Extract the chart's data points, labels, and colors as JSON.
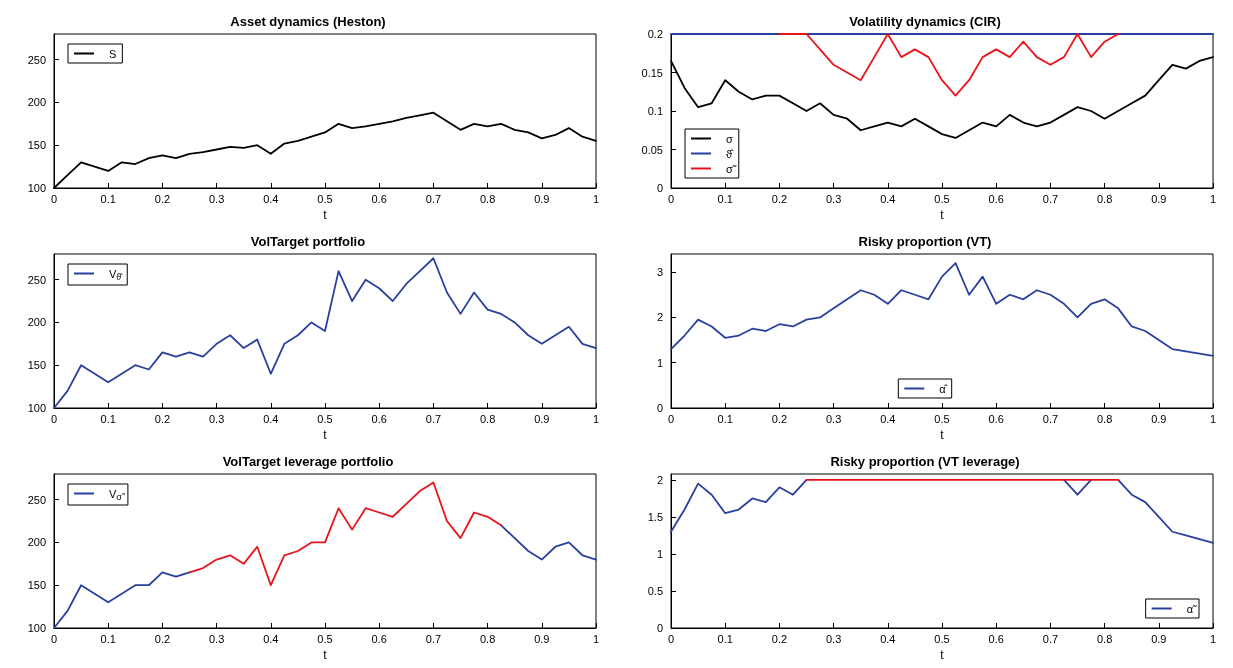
{
  "chart_data": [
    {
      "type": "line",
      "title": "Asset dynamics (Heston)",
      "xlabel": "t",
      "xlim": [
        0,
        1
      ],
      "xticks": [
        0,
        0.1,
        0.2,
        0.3,
        0.4,
        0.5,
        0.6,
        0.7,
        0.8,
        0.9,
        1
      ],
      "ylim": [
        100,
        280
      ],
      "yticks": [
        100,
        150,
        200,
        250
      ],
      "legend": "top left",
      "grid": false,
      "marker": "none",
      "x": [
        0,
        0.025,
        0.05,
        0.075,
        0.1,
        0.125,
        0.15,
        0.175,
        0.2,
        0.225,
        0.25,
        0.275,
        0.3,
        0.325,
        0.35,
        0.375,
        0.4,
        0.425,
        0.45,
        0.475,
        0.5,
        0.525,
        0.55,
        0.575,
        0.6,
        0.625,
        0.65,
        0.675,
        0.7,
        0.725,
        0.75,
        0.775,
        0.8,
        0.825,
        0.85,
        0.875,
        0.9,
        0.925,
        0.95,
        0.975,
        1
      ],
      "series": [
        {
          "name": "S",
          "color": "#000000",
          "values": [
            100,
            115,
            130,
            125,
            120,
            130,
            128,
            135,
            138,
            135,
            140,
            142,
            145,
            148,
            147,
            150,
            140,
            152,
            155,
            160,
            165,
            175,
            170,
            172,
            175,
            178,
            182,
            185,
            188,
            178,
            168,
            175,
            172,
            175,
            168,
            165,
            158,
            162,
            170,
            160,
            155
          ]
        }
      ]
    },
    {
      "type": "line",
      "title": "Volatility dynamics (CIR)",
      "xlabel": "t",
      "xlim": [
        0,
        1
      ],
      "xticks": [
        0,
        0.1,
        0.2,
        0.3,
        0.4,
        0.5,
        0.6,
        0.7,
        0.8,
        0.9,
        1
      ],
      "ylim": [
        0,
        0.2
      ],
      "yticks": [
        0,
        0.05,
        0.1,
        0.15,
        0.2
      ],
      "legend": "bottom left",
      "grid": false,
      "marker": "none",
      "x": [
        0,
        0.025,
        0.05,
        0.075,
        0.1,
        0.125,
        0.15,
        0.175,
        0.2,
        0.225,
        0.25,
        0.275,
        0.3,
        0.325,
        0.35,
        0.375,
        0.4,
        0.425,
        0.45,
        0.475,
        0.5,
        0.525,
        0.55,
        0.575,
        0.6,
        0.625,
        0.65,
        0.675,
        0.7,
        0.725,
        0.75,
        0.775,
        0.8,
        0.825,
        0.85,
        0.875,
        0.9,
        0.925,
        0.95,
        0.975,
        1
      ],
      "series": [
        {
          "name": "σ",
          "color": "#000000",
          "values": [
            0.165,
            0.13,
            0.105,
            0.11,
            0.14,
            0.125,
            0.115,
            0.12,
            0.12,
            0.11,
            0.1,
            0.11,
            0.095,
            0.09,
            0.075,
            0.08,
            0.085,
            0.08,
            0.09,
            0.08,
            0.07,
            0.065,
            0.075,
            0.085,
            0.08,
            0.095,
            0.085,
            0.08,
            0.085,
            0.095,
            0.105,
            0.1,
            0.09,
            0.1,
            0.11,
            0.12,
            0.14,
            0.16,
            0.155,
            0.165,
            0.17
          ]
        },
        {
          "name": "ϑ̂",
          "color": "#2b3f9e",
          "values": [
            0.2,
            0.2,
            0.2,
            0.2,
            0.2,
            0.2,
            0.2,
            0.2,
            0.2,
            0.2,
            0.2,
            0.2,
            0.2,
            0.2,
            0.2,
            0.2,
            0.2,
            0.2,
            0.2,
            0.2,
            0.2,
            0.2,
            0.2,
            0.2,
            0.2,
            0.2,
            0.2,
            0.2,
            0.2,
            0.2,
            0.2,
            0.2,
            0.2,
            0.2,
            0.2,
            0.2,
            0.2,
            0.2,
            0.2,
            0.2,
            0.2
          ]
        },
        {
          "name": "σ̃",
          "color": "#e8141c",
          "x": [
            0.2,
            0.225,
            0.25,
            0.275,
            0.3,
            0.325,
            0.35,
            0.375,
            0.4,
            0.425,
            0.45,
            0.475,
            0.5,
            0.525,
            0.55,
            0.575,
            0.6,
            0.625,
            0.65,
            0.675,
            0.7,
            0.725,
            0.75,
            0.775,
            0.8,
            0.825
          ],
          "values": [
            0.2,
            0.2,
            0.2,
            0.18,
            0.16,
            0.15,
            0.14,
            0.17,
            0.2,
            0.17,
            0.18,
            0.17,
            0.14,
            0.12,
            0.14,
            0.17,
            0.18,
            0.17,
            0.19,
            0.17,
            0.16,
            0.17,
            0.2,
            0.17,
            0.19,
            0.2
          ]
        }
      ]
    },
    {
      "type": "line",
      "title": "VolTarget portfolio",
      "xlabel": "t",
      "xlim": [
        0,
        1
      ],
      "xticks": [
        0,
        0.1,
        0.2,
        0.3,
        0.4,
        0.5,
        0.6,
        0.7,
        0.8,
        0.9,
        1
      ],
      "ylim": [
        100,
        280
      ],
      "yticks": [
        100,
        150,
        200,
        250
      ],
      "legend": "top left",
      "grid": false,
      "marker": "none",
      "x": [
        0,
        0.025,
        0.05,
        0.075,
        0.1,
        0.125,
        0.15,
        0.175,
        0.2,
        0.225,
        0.25,
        0.275,
        0.3,
        0.325,
        0.35,
        0.375,
        0.4,
        0.425,
        0.45,
        0.475,
        0.5,
        0.525,
        0.55,
        0.575,
        0.6,
        0.625,
        0.65,
        0.675,
        0.7,
        0.725,
        0.75,
        0.775,
        0.8,
        0.825,
        0.85,
        0.875,
        0.9,
        0.925,
        0.95,
        0.975,
        1
      ],
      "series": [
        {
          "name": "V$_{ϑ̂}$",
          "color": "#2b3f9e",
          "values": [
            100,
            120,
            150,
            140,
            130,
            140,
            150,
            145,
            165,
            160,
            165,
            160,
            175,
            185,
            170,
            180,
            140,
            175,
            185,
            200,
            190,
            260,
            225,
            250,
            240,
            225,
            245,
            260,
            275,
            235,
            210,
            235,
            215,
            210,
            200,
            185,
            175,
            185,
            195,
            175,
            170
          ]
        }
      ]
    },
    {
      "type": "line",
      "title": "Risky proportion (VT)",
      "xlabel": "t",
      "xlim": [
        0,
        1
      ],
      "xticks": [
        0,
        0.1,
        0.2,
        0.3,
        0.4,
        0.5,
        0.6,
        0.7,
        0.8,
        0.9,
        1
      ],
      "ylim": [
        0,
        3.4
      ],
      "yticks": [
        0,
        1,
        2,
        3
      ],
      "legend": "bottom",
      "grid": false,
      "marker": "none",
      "x": [
        0,
        0.025,
        0.05,
        0.075,
        0.1,
        0.125,
        0.15,
        0.175,
        0.2,
        0.225,
        0.25,
        0.275,
        0.3,
        0.325,
        0.35,
        0.375,
        0.4,
        0.425,
        0.45,
        0.475,
        0.5,
        0.525,
        0.55,
        0.575,
        0.6,
        0.625,
        0.65,
        0.675,
        0.7,
        0.725,
        0.75,
        0.775,
        0.8,
        0.825,
        0.85,
        0.875,
        0.9,
        0.925,
        0.95,
        0.975,
        1
      ],
      "series": [
        {
          "name": "α̂",
          "color": "#2b3f9e",
          "values": [
            1.3,
            1.6,
            1.95,
            1.8,
            1.55,
            1.6,
            1.75,
            1.7,
            1.85,
            1.8,
            1.95,
            2,
            2.2,
            2.4,
            2.6,
            2.5,
            2.3,
            2.6,
            2.5,
            2.4,
            2.9,
            3.2,
            2.5,
            2.9,
            2.3,
            2.5,
            2.4,
            2.6,
            2.5,
            2.3,
            2,
            2.3,
            2.4,
            2.2,
            1.8,
            1.7,
            1.5,
            1.3,
            1.25,
            1.2,
            1.15
          ]
        }
      ]
    },
    {
      "type": "line",
      "title": "VolTarget leverage portfolio",
      "xlabel": "t",
      "xlim": [
        0,
        1
      ],
      "xticks": [
        0,
        0.1,
        0.2,
        0.3,
        0.4,
        0.5,
        0.6,
        0.7,
        0.8,
        0.9,
        1
      ],
      "ylim": [
        100,
        280
      ],
      "yticks": [
        100,
        150,
        200,
        250
      ],
      "legend": "top left",
      "grid": false,
      "marker": "none",
      "x": [
        0,
        0.025,
        0.05,
        0.075,
        0.1,
        0.125,
        0.15,
        0.175,
        0.2,
        0.225,
        0.25,
        0.275,
        0.3,
        0.325,
        0.35,
        0.375,
        0.4,
        0.425,
        0.45,
        0.475,
        0.5,
        0.525,
        0.55,
        0.575,
        0.6,
        0.625,
        0.65,
        0.675,
        0.7,
        0.725,
        0.75,
        0.775,
        0.8,
        0.825,
        0.85,
        0.875,
        0.9,
        0.925,
        0.95,
        0.975,
        1
      ],
      "series": [
        {
          "name": "V$_{σ̃}$",
          "color": "#2b3f9e",
          "values": [
            100,
            120,
            150,
            140,
            130,
            140,
            150,
            150,
            165,
            160,
            165,
            null,
            null,
            null,
            null,
            null,
            null,
            null,
            null,
            null,
            null,
            null,
            null,
            null,
            null,
            null,
            null,
            null,
            null,
            null,
            null,
            null,
            null,
            220,
            205,
            190,
            180,
            195,
            200,
            185,
            180
          ]
        },
        {
          "color": "#e8141c",
          "x": [
            0.25,
            0.275,
            0.3,
            0.325,
            0.35,
            0.375,
            0.4,
            0.425,
            0.45,
            0.475,
            0.5,
            0.525,
            0.55,
            0.575,
            0.6,
            0.625,
            0.65,
            0.675,
            0.7,
            0.725,
            0.75,
            0.775,
            0.8,
            0.825
          ],
          "values": [
            165,
            170,
            180,
            185,
            175,
            195,
            150,
            185,
            190,
            200,
            200,
            240,
            215,
            240,
            235,
            230,
            245,
            260,
            270,
            225,
            205,
            235,
            230,
            220
          ]
        }
      ]
    },
    {
      "type": "line",
      "title": "Risky proportion (VT leverage)",
      "xlabel": "t",
      "xlim": [
        0,
        1
      ],
      "xticks": [
        0,
        0.1,
        0.2,
        0.3,
        0.4,
        0.5,
        0.6,
        0.7,
        0.8,
        0.9,
        1
      ],
      "ylim": [
        0,
        2.08
      ],
      "yticks": [
        0,
        0.5,
        1,
        1.5,
        2
      ],
      "legend": "bottom right",
      "grid": false,
      "marker": "none",
      "x": [
        0,
        0.025,
        0.05,
        0.075,
        0.1,
        0.125,
        0.15,
        0.175,
        0.2,
        0.225,
        0.25,
        0.275,
        0.3,
        0.325,
        0.35,
        0.375,
        0.4,
        0.425,
        0.45,
        0.475,
        0.5,
        0.525,
        0.55,
        0.575,
        0.6,
        0.625,
        0.65,
        0.675,
        0.7,
        0.725,
        0.75,
        0.775,
        0.8,
        0.825,
        0.85,
        0.875,
        0.9,
        0.925,
        0.95,
        0.975,
        1
      ],
      "series": [
        {
          "name": "α̃",
          "color": "#2b3f9e",
          "values": [
            1.3,
            1.6,
            1.95,
            1.8,
            1.55,
            1.6,
            1.75,
            1.7,
            1.9,
            1.8,
            2,
            null,
            null,
            null,
            null,
            null,
            null,
            null,
            null,
            null,
            null,
            null,
            null,
            null,
            null,
            null,
            null,
            null,
            null,
            2,
            1.8,
            2,
            null,
            2,
            1.8,
            1.7,
            1.5,
            1.3,
            1.25,
            1.2,
            1.15
          ]
        },
        {
          "color": "#e8141c",
          "x": [
            0.25,
            0.825
          ],
          "values": [
            2,
            2
          ]
        }
      ]
    }
  ]
}
